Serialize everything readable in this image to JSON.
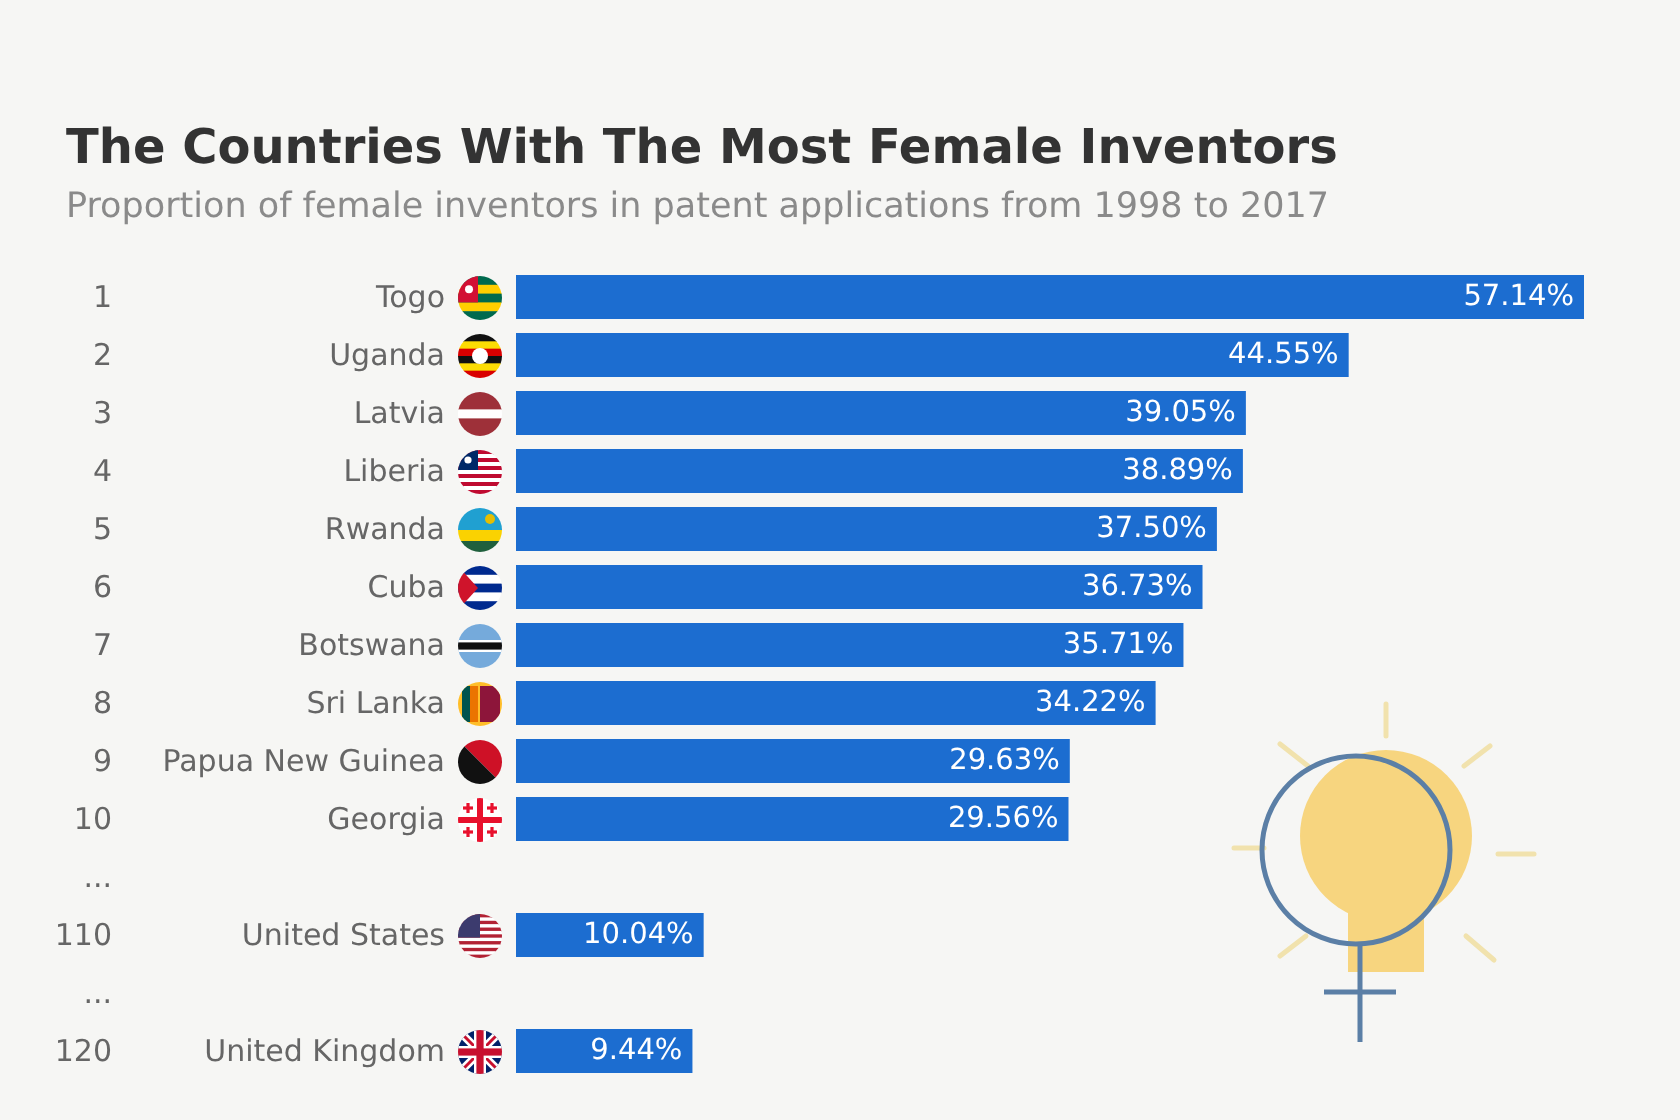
{
  "chart_data": {
    "type": "bar",
    "orientation": "horizontal",
    "title": "The Countries With The Most Female Inventors",
    "subtitle": "Proportion of female inventors in patent applications from 1998 to 2017",
    "categories": [
      "Togo",
      "Uganda",
      "Latvia",
      "Liberia",
      "Rwanda",
      "Cuba",
      "Botswana",
      "Sri Lanka",
      "Papua New Guinea",
      "Georgia",
      null,
      "United States",
      null,
      "United Kingdom"
    ],
    "values": [
      57.14,
      44.55,
      39.05,
      38.89,
      37.5,
      36.73,
      35.71,
      34.22,
      29.63,
      29.56,
      null,
      10.04,
      null,
      9.44
    ],
    "value_labels": [
      "57.14%",
      "44.55%",
      "39.05%",
      "38.89%",
      "37.50%",
      "36.73%",
      "35.71%",
      "34.22%",
      "29.63%",
      "29.56%",
      null,
      "10.04%",
      null,
      "9.44%"
    ],
    "color": "#1c6dd0",
    "annotations": [
      "1",
      "2",
      "3",
      "4",
      "5",
      "6",
      "7",
      "8",
      "9",
      "10",
      "...",
      "110",
      "...",
      "120"
    ]
  }
}
